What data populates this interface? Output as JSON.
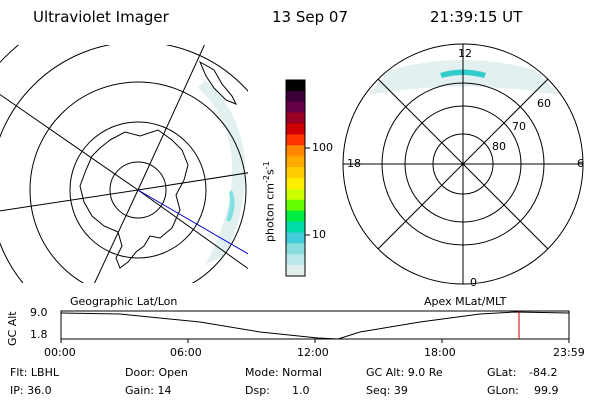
{
  "header": {
    "instrument": "Ultraviolet Imager",
    "date": "13 Sep 07",
    "time": "21:39:15 UT"
  },
  "left_map": {
    "caption": "Geographic Lat/Lon"
  },
  "right_map": {
    "caption": "Apex MLat/MLT",
    "mlt_labels": {
      "top": "12",
      "left": "18",
      "right": "6",
      "bottom": "0"
    },
    "lat_labels": [
      "60",
      "70",
      "80"
    ]
  },
  "colorbar": {
    "unit_label": "photon cm",
    "unit_sup1": "-2",
    "unit_mid": "s",
    "unit_sup2": "-1",
    "ticks": [
      "100",
      "10"
    ],
    "colors": [
      "#000000",
      "#3a0035",
      "#660044",
      "#990022",
      "#cc0000",
      "#ff3300",
      "#ff8800",
      "#ffaa00",
      "#ffcc00",
      "#ffee00",
      "#ccff00",
      "#66ff00",
      "#00ee44",
      "#00ddaa",
      "#44ccdd",
      "#88dddd",
      "#bbe8e8",
      "#e0eeee"
    ]
  },
  "altitude_plot": {
    "ylabel": "GC Alt",
    "yticks": [
      "9.0",
      "1.8"
    ],
    "xticks": [
      "00:00",
      "06:00",
      "12:00",
      "18:00",
      "23:59"
    ],
    "marker_color": "#cc0000"
  },
  "status": {
    "filter": "Flt: LBHL",
    "ip": "IP: 36.0",
    "door": "Door: Open",
    "gain": "Gain: 14",
    "mode": "Mode: Normal",
    "dsp_label": "Dsp:",
    "dsp_value": "1.0",
    "gc_alt": "GC Alt: 9.0 Re",
    "seq": "Seq: 39",
    "glat_label": "GLat:",
    "glat_value": "-84.2",
    "glon_label": "GLon:",
    "glon_value": "99.9"
  }
}
